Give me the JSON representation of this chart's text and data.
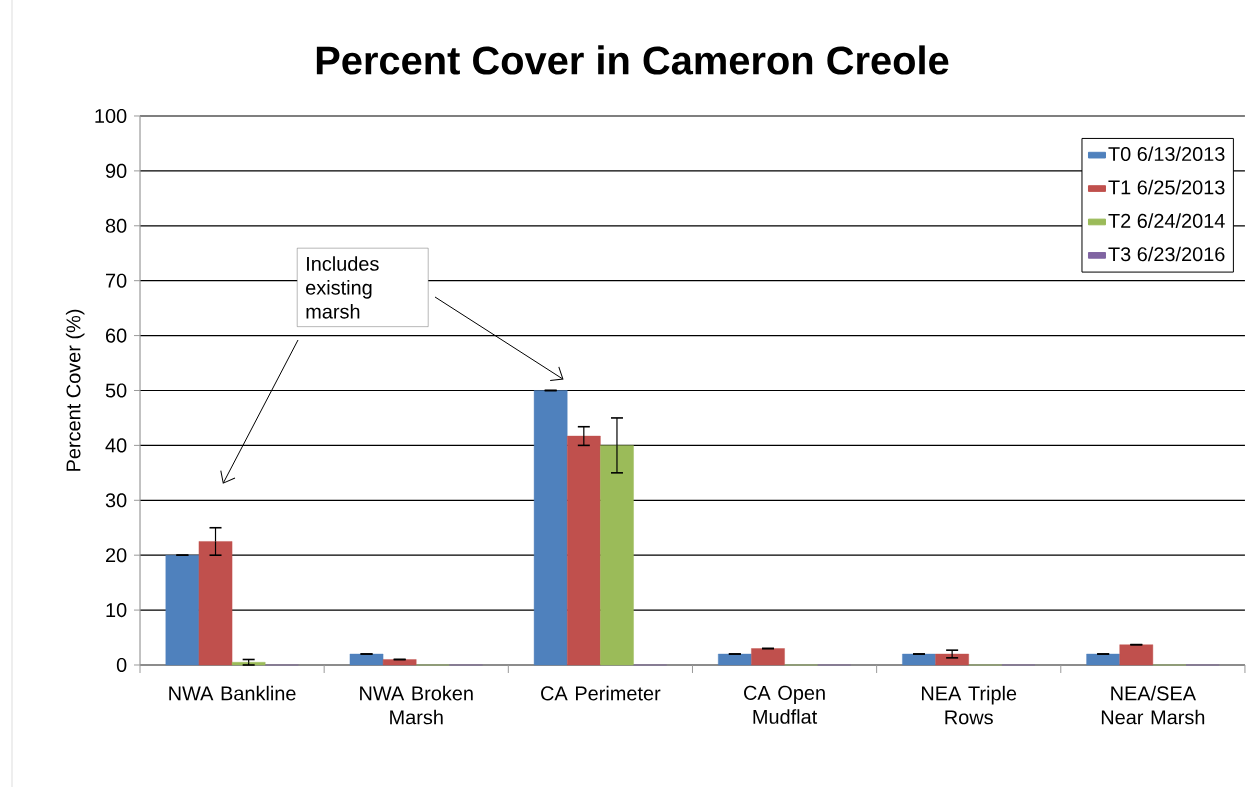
{
  "chart_data": {
    "type": "bar",
    "title": "Percent Cover in Cameron Creole",
    "ylabel": "Percent Cover (%)",
    "categories": [
      "NWA Bankline",
      "NWA Broken Marsh",
      "CA Perimeter",
      "CA Open Mudflat",
      "NEA Triple Rows",
      "NEA/SEA Near Marsh"
    ],
    "series": [
      {
        "name": "T0  6/13/2013",
        "color": "#4f81bd",
        "values": [
          20,
          2,
          50,
          2,
          2,
          2
        ],
        "errors": [
          0,
          0,
          0,
          0,
          0,
          0
        ]
      },
      {
        "name": "T1  6/25/2013",
        "color": "#c0504d",
        "values": [
          22.5,
          1,
          41.7,
          3,
          2,
          3.7
        ],
        "errors": [
          2.5,
          0,
          1.7,
          0,
          0.7,
          0
        ]
      },
      {
        "name": "T2  6/24/2014",
        "color": "#9bbb59",
        "values": [
          0.5,
          0,
          40,
          0,
          0,
          0
        ],
        "errors": [
          0.5,
          null,
          5,
          null,
          null,
          null
        ]
      },
      {
        "name": "T3  6/23/2016",
        "color": "#8064a2",
        "values": [
          0,
          0,
          0,
          0,
          0,
          0
        ]
      }
    ],
    "ylim": [
      0,
      100
    ],
    "yticks": [
      0,
      10,
      20,
      30,
      40,
      50,
      60,
      70,
      80,
      90,
      100
    ],
    "grid": "y",
    "legend": "top right",
    "annotations": [
      "Includes existing marsh"
    ]
  }
}
